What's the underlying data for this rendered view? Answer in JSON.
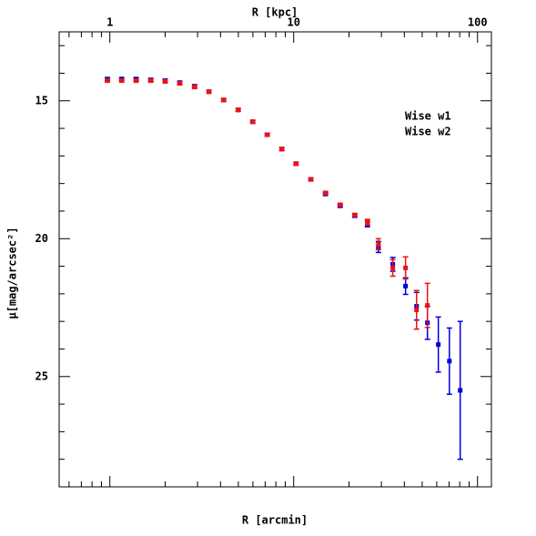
{
  "chart_data": {
    "type": "scatter",
    "xlabel": "R [kpc]",
    "xlabel_bottom": "R [arcmin]",
    "ylabel": "μ[mag/arcsec²]",
    "xlim": [
      0.53,
      119
    ],
    "xlog": true,
    "xticks": [
      1,
      10,
      100
    ],
    "xticks_minor": [
      0.6,
      0.7,
      0.8,
      0.9,
      2,
      3,
      4,
      5,
      6,
      7,
      8,
      9,
      20,
      30,
      40,
      50,
      60,
      70,
      80,
      90
    ],
    "ylim": [
      12.5,
      29
    ],
    "y_inverted": true,
    "yticks": [
      15,
      20,
      25
    ],
    "yticks_minor": [
      13,
      14,
      16,
      17,
      18,
      19,
      21,
      22,
      23,
      24,
      26,
      27,
      28
    ],
    "legend": "upper right",
    "series": [
      {
        "name": "Wise w1",
        "color": "#0000dd",
        "x": [
          0.97,
          1.16,
          1.39,
          1.67,
          2.0,
          2.4,
          2.89,
          3.46,
          4.16,
          4.99,
          5.99,
          7.18,
          8.62,
          10.3,
          12.4,
          14.9,
          17.9,
          21.5,
          25.2,
          28.9,
          34.6,
          40.6,
          46.6,
          53.4,
          61.2,
          70.3,
          80.5
        ],
        "values": [
          14.21,
          14.21,
          14.21,
          14.24,
          14.27,
          14.34,
          14.47,
          14.67,
          14.97,
          15.33,
          15.76,
          16.23,
          16.75,
          17.28,
          17.85,
          18.38,
          18.81,
          19.17,
          19.47,
          20.3,
          20.93,
          21.72,
          22.45,
          23.05,
          23.84,
          24.44,
          25.5
        ],
        "errors": [
          0.05,
          0.05,
          0.05,
          0.05,
          0.05,
          0.05,
          0.05,
          0.05,
          0.05,
          0.05,
          0.05,
          0.05,
          0.05,
          0.05,
          0.05,
          0.05,
          0.05,
          0.05,
          0.1,
          0.2,
          0.25,
          0.3,
          0.5,
          0.6,
          1.0,
          1.2,
          2.5
        ]
      },
      {
        "name": "Wise w2",
        "color": "#ee1111",
        "x": [
          0.97,
          1.16,
          1.39,
          1.67,
          2.0,
          2.4,
          2.89,
          3.46,
          4.16,
          4.99,
          5.99,
          7.18,
          8.62,
          10.3,
          12.4,
          14.9,
          17.9,
          21.5,
          25.2,
          28.9,
          34.6,
          40.6,
          46.6,
          53.4
        ],
        "values": [
          14.27,
          14.27,
          14.27,
          14.27,
          14.3,
          14.37,
          14.5,
          14.67,
          14.97,
          15.33,
          15.76,
          16.23,
          16.75,
          17.28,
          17.85,
          18.34,
          18.77,
          19.14,
          19.4,
          20.2,
          21.06,
          21.06,
          22.58,
          22.42
        ],
        "errors": [
          0.05,
          0.05,
          0.05,
          0.05,
          0.05,
          0.05,
          0.05,
          0.05,
          0.05,
          0.05,
          0.05,
          0.05,
          0.05,
          0.05,
          0.05,
          0.05,
          0.05,
          0.05,
          0.1,
          0.2,
          0.3,
          0.4,
          0.7,
          0.8
        ]
      }
    ]
  }
}
